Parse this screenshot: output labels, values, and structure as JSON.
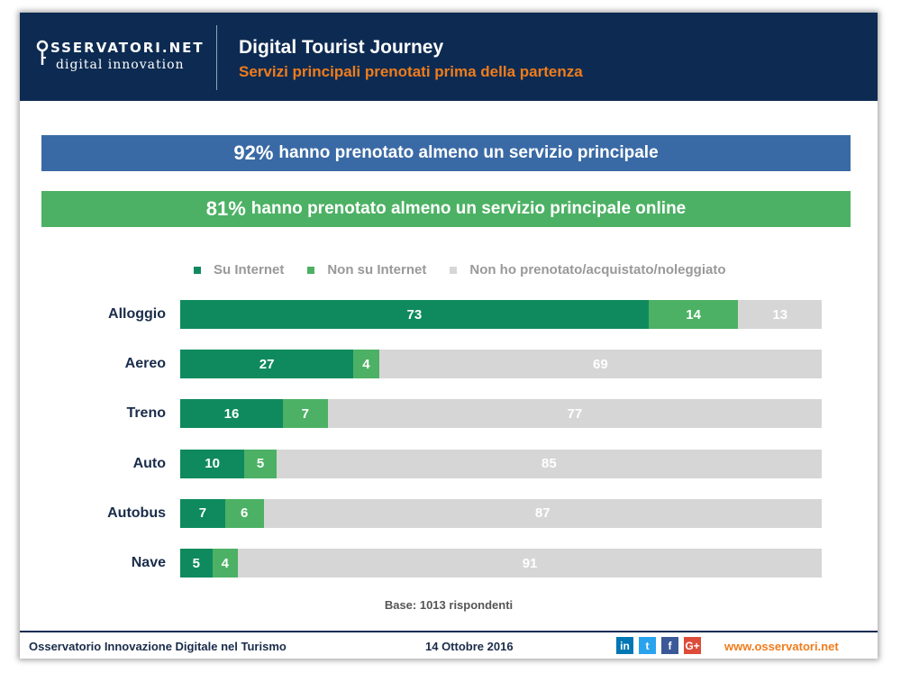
{
  "header": {
    "logo_top": "SSERVATORI.NET",
    "logo_sub": "digital innovation",
    "title": "Digital Tourist Journey",
    "subtitle": "Servizi principali prenotati prima della partenza"
  },
  "banners": [
    {
      "value": "92%",
      "text": "hanno prenotato almeno un servizio principale"
    },
    {
      "value": "81%",
      "text": "hanno prenotato almeno un servizio principale online"
    }
  ],
  "chart_data": {
    "type": "bar",
    "orientation": "horizontal",
    "stacked": true,
    "categories": [
      "Alloggio",
      "Aereo",
      "Treno",
      "Auto",
      "Autobus",
      "Nave"
    ],
    "series": [
      {
        "name": "Su Internet",
        "color": "#0f8a5e",
        "values": [
          73,
          27,
          16,
          10,
          7,
          5
        ]
      },
      {
        "name": "Non su Internet",
        "color": "#4cb164",
        "values": [
          14,
          4,
          7,
          5,
          6,
          4
        ]
      },
      {
        "name": "Non ho prenotato/acquistato/noleggiato",
        "color": "#d6d6d6",
        "values": [
          13,
          69,
          77,
          85,
          87,
          91
        ]
      }
    ],
    "xlim": [
      0,
      100
    ],
    "legend": "top",
    "grid": false
  },
  "base_note": "Base: 1013 rispondenti",
  "footer": {
    "left": "Osservatorio Innovazione Digitale nel Turismo",
    "date": "14 Ottobre 2016",
    "social": [
      {
        "icon": "linkedin-icon",
        "glyph": "in",
        "color": "#0077b5"
      },
      {
        "icon": "twitter-icon",
        "glyph": "t",
        "color": "#2aa3ef"
      },
      {
        "icon": "facebook-icon",
        "glyph": "f",
        "color": "#3b5998"
      },
      {
        "icon": "google-plus-icon",
        "glyph": "G+",
        "color": "#dd4b39"
      }
    ],
    "url": "www.osservatori.net"
  }
}
